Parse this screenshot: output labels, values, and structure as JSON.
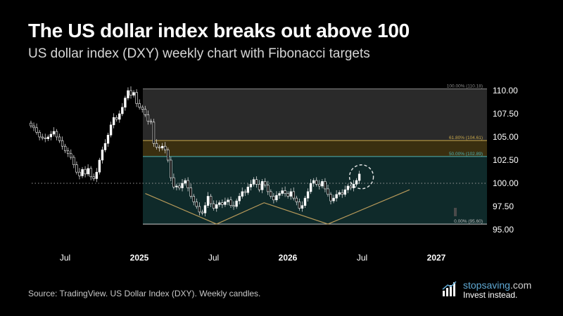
{
  "header": {
    "title": "The US dollar index breaks out above 100",
    "subtitle": "US dollar index (DXY) weekly chart with Fibonacci targets"
  },
  "footer": {
    "source": "Source: TradingView. US Dollar Index (DXY). Weekly candles.",
    "brand_name": "stopsaving",
    "brand_tld": ".com",
    "brand_tagline": "Invest instead."
  },
  "colors": {
    "background": "#000000",
    "candle_up": "#ffffff",
    "candle_down": "#ffffff",
    "fib_zone_top": "#2a2a2a",
    "fib_zone_gold": "#3a2f10",
    "fib_zone_teal": "#0f2a2a",
    "gold": "#c9a84a",
    "teal": "#4fb3b3",
    "pattern_line": "#b89a5a"
  },
  "chart_data": {
    "type": "candlestick",
    "title": "",
    "xlabel": "",
    "ylabel": "",
    "ylim": [
      95.0,
      110.5
    ],
    "y_ticks": [
      "110.00",
      "107.50",
      "105.00",
      "102.50",
      "100.00",
      "97.50",
      "95.00"
    ],
    "x_ticks": [
      "Jul",
      "2025",
      "Jul",
      "2026",
      "Jul",
      "2027"
    ],
    "x_ticks_bold": [
      false,
      true,
      false,
      true,
      false,
      true
    ],
    "reference_line": {
      "value": 100.0,
      "label": "100.00",
      "style": "dotted"
    },
    "fibonacci_levels": [
      {
        "label": "100.00% (110.18)",
        "value": 110.18
      },
      {
        "label": "61.80% (104.61)",
        "value": 104.61
      },
      {
        "label": "50.00% (102.89)",
        "value": 102.89
      },
      {
        "label": "0.00% (95.60)",
        "value": 95.6
      }
    ],
    "closes": [
      106.2,
      106.0,
      105.5,
      105.0,
      104.9,
      104.8,
      105.0,
      105.3,
      105.6,
      105.0,
      104.6,
      104.0,
      103.5,
      103.2,
      102.8,
      102.0,
      101.2,
      100.8,
      101.5,
      101.0,
      101.6,
      100.7,
      100.5,
      101.2,
      102.5,
      103.6,
      104.3,
      105.2,
      106.3,
      107.1,
      106.9,
      107.5,
      108.2,
      109.2,
      110.0,
      109.5,
      109.8,
      108.6,
      108.2,
      108.0,
      107.4,
      106.7,
      106.6,
      104.3,
      103.9,
      103.8,
      104.0,
      103.6,
      102.5,
      100.6,
      99.6,
      99.7,
      99.5,
      100.0,
      100.3,
      99.5,
      98.6,
      98.0,
      97.5,
      96.9,
      96.8,
      97.6,
      98.6,
      97.8,
      97.3,
      97.7,
      97.9,
      97.7,
      98.0,
      98.2,
      97.6,
      97.5,
      98.1,
      98.6,
      99.1,
      99.0,
      99.6,
      99.9,
      100.4,
      99.9,
      99.3,
      100.2,
      99.8,
      99.1,
      98.6,
      98.2,
      98.7,
      98.9,
      99.2,
      98.9,
      98.6,
      99.1,
      98.4,
      98.0,
      97.3,
      97.6,
      98.4,
      99.1,
      100.0,
      100.3,
      99.9,
      99.7,
      100.2,
      99.4,
      98.8,
      98.1,
      98.4,
      98.8,
      99.0,
      98.8,
      99.3,
      99.7,
      99.5,
      99.9,
      100.3,
      101.0
    ],
    "pattern_points": [
      [
        2025.04,
        98.9
      ],
      [
        2025.52,
        95.6
      ],
      [
        2025.84,
        97.9
      ],
      [
        2026.27,
        95.6
      ],
      [
        2026.82,
        99.3
      ]
    ],
    "breakout_marker_value": 100.7,
    "price_position_value": 97.2
  }
}
